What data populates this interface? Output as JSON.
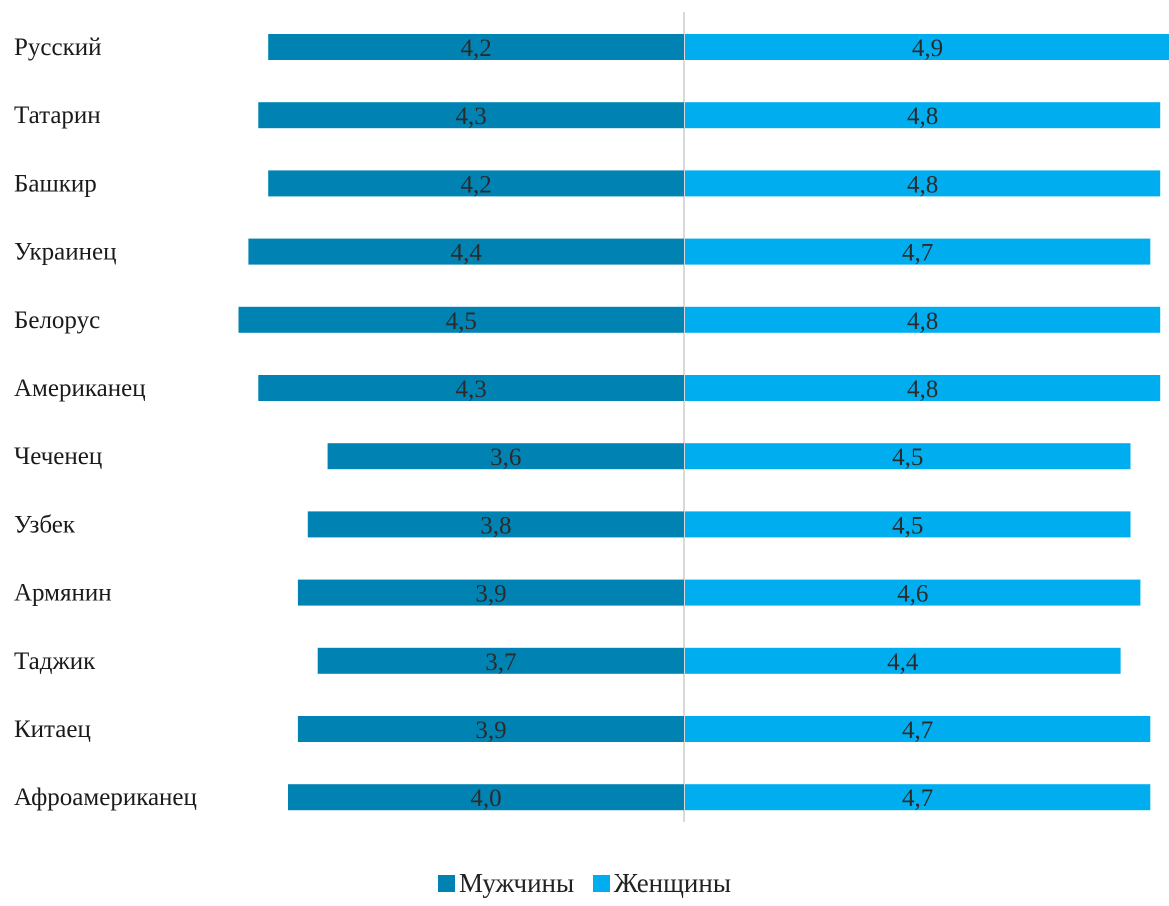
{
  "chart_data": {
    "type": "bar",
    "orientation": "horizontal-diverging",
    "title": "",
    "xlabel": "",
    "ylabel": "",
    "categories": [
      "Русский",
      "Татарин",
      "Башкир",
      "Украинец",
      "Белорус",
      "Американец",
      "Чеченец",
      "Узбек",
      "Армянин",
      "Таджик",
      "Китаец",
      "Афроамериканец"
    ],
    "series": [
      {
        "name": "Мужчины",
        "color": "#0083b3",
        "direction": "left",
        "values": [
          4.2,
          4.3,
          4.2,
          4.4,
          4.5,
          4.3,
          3.6,
          3.8,
          3.9,
          3.7,
          3.9,
          4.0
        ],
        "labels": [
          "4,2",
          "4,3",
          "4,2",
          "4,4",
          "4,5",
          "4,3",
          "3,6",
          "3,8",
          "3,9",
          "3,7",
          "3,9",
          "4,0"
        ]
      },
      {
        "name": "Женщины",
        "color": "#00aeef",
        "direction": "right",
        "values": [
          4.9,
          4.8,
          4.8,
          4.7,
          4.8,
          4.8,
          4.5,
          4.5,
          4.6,
          4.4,
          4.7,
          4.7
        ],
        "labels": [
          "4,9",
          "4,8",
          "4,8",
          "4,7",
          "4,8",
          "4,8",
          "4,5",
          "4,5",
          "4,6",
          "4,4",
          "4,7",
          "4,7"
        ]
      }
    ],
    "grid": false,
    "legend_position": "bottom",
    "axis_line_color": "#d9d9d9"
  }
}
